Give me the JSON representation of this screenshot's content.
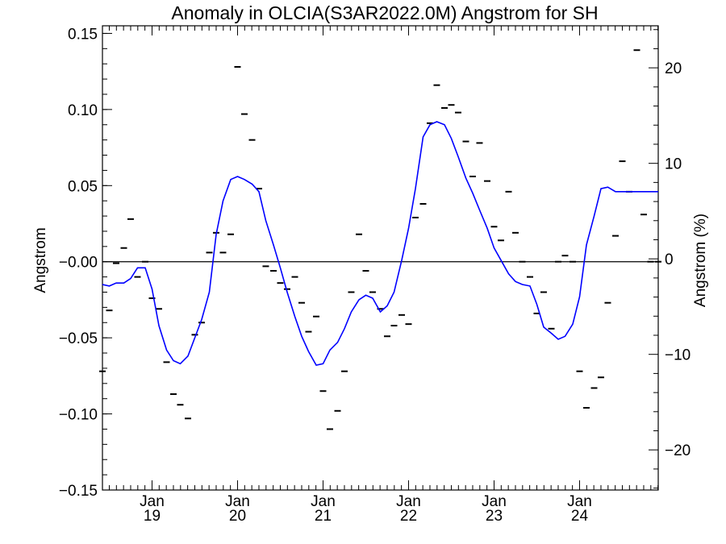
{
  "chart_data": {
    "type": "line",
    "title": "Anomaly in OLCIA(S3AR2022.0M) Angstrom for SH",
    "ylabel": "Angstrom",
    "ylabel_right": "Angstrom (%)",
    "ylim": [
      -0.15,
      0.155
    ],
    "y_ticks": [
      -0.15,
      -0.1,
      -0.05,
      0.0,
      0.05,
      0.1,
      0.15
    ],
    "y_tick_labels": [
      "−0.15",
      "−0.10",
      "−0.05",
      "−0.00",
      "0.05",
      "0.10",
      "0.15"
    ],
    "y2lim": [
      -24.2,
      24.4
    ],
    "y2_ticks": [
      -20,
      -10,
      0,
      10,
      20
    ],
    "y2_tick_labels": [
      "−20",
      "−10",
      "0",
      "10",
      "20"
    ],
    "x_range": [
      2018.42,
      2024.92
    ],
    "x_ticks": [
      {
        "x": 2019.0,
        "month": "Jan",
        "year": "19"
      },
      {
        "x": 2020.0,
        "month": "Jan",
        "year": "20"
      },
      {
        "x": 2021.0,
        "month": "Jan",
        "year": "21"
      },
      {
        "x": 2022.0,
        "month": "Jan",
        "year": "22"
      },
      {
        "x": 2023.0,
        "month": "Jan",
        "year": "23"
      },
      {
        "x": 2024.0,
        "month": "Jan",
        "year": "24"
      }
    ],
    "zero_line": 0,
    "series": [
      {
        "role": "monthly anomaly",
        "style": "dash-markers",
        "color": "#000000",
        "x": [
          2018.42,
          2018.5,
          2018.58,
          2018.67,
          2018.75,
          2018.83,
          2018.92,
          2019.0,
          2019.08,
          2019.17,
          2019.25,
          2019.33,
          2019.42,
          2019.5,
          2019.58,
          2019.67,
          2019.75,
          2019.83,
          2019.92,
          2020.0,
          2020.08,
          2020.17,
          2020.25,
          2020.33,
          2020.42,
          2020.5,
          2020.58,
          2020.67,
          2020.75,
          2020.83,
          2020.92,
          2021.0,
          2021.08,
          2021.17,
          2021.25,
          2021.33,
          2021.42,
          2021.5,
          2021.58,
          2021.67,
          2021.75,
          2021.83,
          2021.92,
          2022.0,
          2022.08,
          2022.17,
          2022.25,
          2022.33,
          2022.42,
          2022.5,
          2022.58,
          2022.67,
          2022.75,
          2022.83,
          2022.92,
          2023.0,
          2023.08,
          2023.17,
          2023.25,
          2023.33,
          2023.42,
          2023.5,
          2023.58,
          2023.67,
          2023.75,
          2023.83,
          2023.92,
          2024.0,
          2024.08,
          2024.17,
          2024.25,
          2024.33,
          2024.42,
          2024.5,
          2024.58,
          2024.67,
          2024.75,
          2024.83,
          2024.92
        ],
        "values": [
          -0.072,
          -0.032,
          -0.001,
          0.009,
          0.028,
          -0.01,
          0.0,
          -0.024,
          -0.031,
          -0.066,
          -0.087,
          -0.094,
          -0.103,
          -0.048,
          -0.04,
          0.006,
          0.019,
          0.006,
          0.018,
          0.128,
          0.097,
          0.08,
          0.048,
          -0.003,
          -0.006,
          -0.014,
          -0.018,
          -0.01,
          -0.027,
          -0.046,
          -0.036,
          -0.085,
          -0.11,
          -0.098,
          -0.072,
          -0.02,
          0.018,
          -0.006,
          -0.02,
          -0.031,
          -0.049,
          -0.042,
          -0.035,
          -0.041,
          0.029,
          0.038,
          0.091,
          0.116,
          0.101,
          0.103,
          0.098,
          0.079,
          0.056,
          0.078,
          0.053,
          0.023,
          0.014,
          0.046,
          0.019,
          0.0,
          -0.01,
          -0.034,
          -0.02,
          -0.044,
          0.0,
          0.004,
          0.0,
          -0.072,
          -0.096,
          -0.083,
          -0.076,
          -0.027,
          0.017,
          0.066,
          0.046,
          0.139,
          0.031,
          0.0,
          0.0
        ]
      },
      {
        "role": "smoothed",
        "style": "line",
        "color": "#0000ff",
        "x": [
          2018.42,
          2018.5,
          2018.58,
          2018.67,
          2018.75,
          2018.83,
          2018.92,
          2019.0,
          2019.08,
          2019.17,
          2019.25,
          2019.33,
          2019.42,
          2019.5,
          2019.58,
          2019.67,
          2019.75,
          2019.83,
          2019.92,
          2020.0,
          2020.08,
          2020.17,
          2020.25,
          2020.33,
          2020.42,
          2020.5,
          2020.58,
          2020.67,
          2020.75,
          2020.83,
          2020.92,
          2021.0,
          2021.08,
          2021.17,
          2021.25,
          2021.33,
          2021.42,
          2021.5,
          2021.58,
          2021.67,
          2021.75,
          2021.83,
          2021.92,
          2022.0,
          2022.08,
          2022.17,
          2022.25,
          2022.33,
          2022.42,
          2022.5,
          2022.58,
          2022.67,
          2022.75,
          2022.83,
          2022.92,
          2023.0,
          2023.08,
          2023.17,
          2023.25,
          2023.33,
          2023.42,
          2023.5,
          2023.58,
          2023.67,
          2023.75,
          2023.83,
          2023.92,
          2024.0,
          2024.08,
          2024.17,
          2024.25,
          2024.33,
          2024.42,
          2024.5,
          2024.58,
          2024.67,
          2024.75,
          2024.83,
          2024.92
        ],
        "values": [
          -0.015,
          -0.016,
          -0.014,
          -0.014,
          -0.011,
          -0.004,
          -0.004,
          -0.018,
          -0.042,
          -0.058,
          -0.065,
          -0.067,
          -0.062,
          -0.05,
          -0.038,
          -0.02,
          0.018,
          0.04,
          0.054,
          0.056,
          0.054,
          0.051,
          0.046,
          0.027,
          0.011,
          -0.004,
          -0.02,
          -0.036,
          -0.049,
          -0.059,
          -0.068,
          -0.067,
          -0.058,
          -0.053,
          -0.044,
          -0.033,
          -0.025,
          -0.022,
          -0.024,
          -0.033,
          -0.029,
          -0.02,
          0.001,
          0.022,
          0.048,
          0.082,
          0.09,
          0.092,
          0.09,
          0.081,
          0.069,
          0.055,
          0.045,
          0.034,
          0.022,
          0.009,
          0.001,
          -0.008,
          -0.013,
          -0.015,
          -0.016,
          -0.028,
          -0.043,
          -0.047,
          -0.051,
          -0.049,
          -0.041,
          -0.023,
          0.011,
          0.03,
          0.048,
          0.049,
          0.046,
          0.046,
          0.046,
          0.046,
          0.046,
          0.046,
          0.046
        ]
      }
    ]
  }
}
